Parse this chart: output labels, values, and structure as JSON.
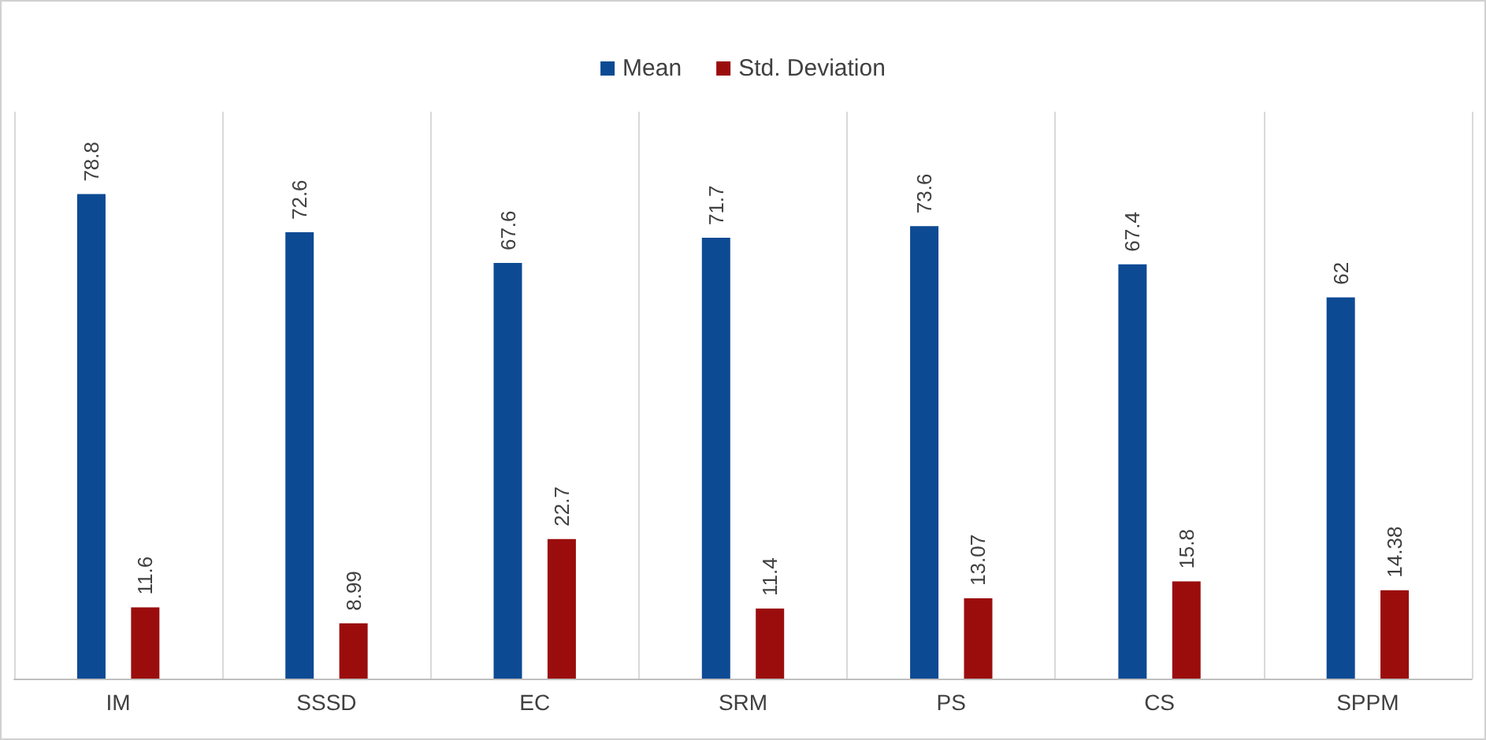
{
  "chart_data": {
    "type": "bar",
    "categories": [
      "IM",
      "SSSD",
      "EC",
      "SRM",
      "PS",
      "CS",
      "SPPM"
    ],
    "series": [
      {
        "name": "Mean",
        "color": "#0d4a94",
        "values": [
          78.8,
          72.6,
          67.6,
          71.7,
          73.6,
          67.4,
          62
        ]
      },
      {
        "name": "Std. Deviation",
        "color": "#9b0d0d",
        "values": [
          11.6,
          8.99,
          22.7,
          11.4,
          13.07,
          15.8,
          14.38
        ]
      }
    ],
    "data_labels": true,
    "grid": "x",
    "legend": "top"
  }
}
